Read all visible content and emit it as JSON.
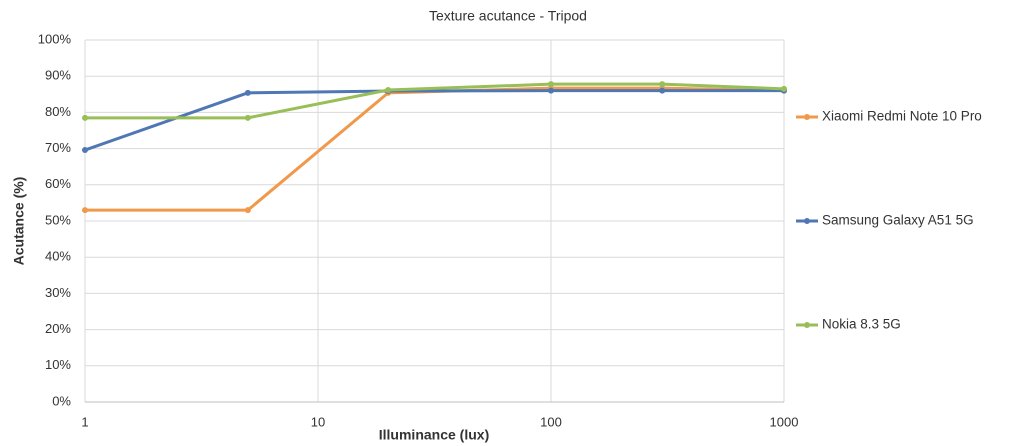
{
  "chart_data": {
    "type": "line",
    "title": "Texture acutance - Tripod",
    "x_label": "Illuminance (lux)",
    "y_label": "Acutance (%)",
    "x": [
      1,
      5,
      20,
      100,
      300,
      1000
    ],
    "x_log": true,
    "xlim": [
      1,
      1000
    ],
    "xticks": [
      1,
      10,
      100,
      1000
    ],
    "ylim": [
      0,
      100
    ],
    "yticks": [
      {
        "value": 0,
        "label": "0%"
      },
      {
        "value": 10,
        "label": "10%"
      },
      {
        "value": 20,
        "label": "20%"
      },
      {
        "value": 30,
        "label": "30%"
      },
      {
        "value": 40,
        "label": "40%"
      },
      {
        "value": 50,
        "label": "50%"
      },
      {
        "value": 60,
        "label": "60%"
      },
      {
        "value": 70,
        "label": "70%"
      },
      {
        "value": 80,
        "label": "80%"
      },
      {
        "value": 90,
        "label": "90%"
      },
      {
        "value": 100,
        "label": "100%"
      }
    ],
    "grid": true,
    "legend": "right",
    "series": [
      {
        "name": "Xiaomi Redmi Note 10 Pro",
        "color": "#f0994b",
        "values": [
          53,
          53,
          85.4,
          86.7,
          86.7,
          86
        ]
      },
      {
        "name": "Samsung Galaxy A51 5G",
        "color": "#4f77b4",
        "values": [
          69.6,
          85.4,
          85.9,
          86,
          86,
          86
        ]
      },
      {
        "name": "Nokia 8.3 5G",
        "color": "#98be57",
        "values": [
          78.5,
          78.5,
          86.2,
          87.8,
          87.8,
          86.5
        ]
      }
    ]
  }
}
